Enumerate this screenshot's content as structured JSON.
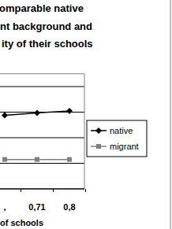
{
  "chart_data": {
    "type": "line",
    "title": "omparable native\nnt background and\nity of their schools",
    "x_label": "of schools",
    "categories": [
      ",",
      "0,71",
      "0,8"
    ],
    "series": [
      {
        "name": "native",
        "color": "#000000",
        "marker": "diamond",
        "values": [
          2.88,
          2.97,
          3.05
        ]
      },
      {
        "name": "migrant",
        "color": "#808080",
        "marker": "square",
        "values": [
          1.15,
          1.15,
          1.15
        ]
      }
    ],
    "ylim": [
      0,
      4.5
    ],
    "yticks": [
      0,
      1,
      2,
      3,
      4
    ],
    "grid": true,
    "legend": "right",
    "tick_labels": "x"
  }
}
